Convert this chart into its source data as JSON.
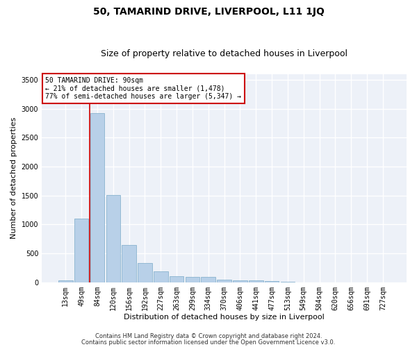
{
  "title": "50, TAMARIND DRIVE, LIVERPOOL, L11 1JQ",
  "subtitle": "Size of property relative to detached houses in Liverpool",
  "xlabel": "Distribution of detached houses by size in Liverpool",
  "ylabel": "Number of detached properties",
  "categories": [
    "13sqm",
    "49sqm",
    "84sqm",
    "120sqm",
    "156sqm",
    "192sqm",
    "227sqm",
    "263sqm",
    "299sqm",
    "334sqm",
    "370sqm",
    "406sqm",
    "441sqm",
    "477sqm",
    "513sqm",
    "549sqm",
    "584sqm",
    "620sqm",
    "656sqm",
    "691sqm",
    "727sqm"
  ],
  "values": [
    30,
    1100,
    2920,
    1510,
    640,
    335,
    195,
    100,
    95,
    90,
    50,
    30,
    30,
    20,
    5,
    3,
    3,
    2,
    1,
    1,
    1
  ],
  "bar_color": "#b8d0e8",
  "bar_edge_color": "#7aaac8",
  "highlight_color": "#cc0000",
  "vline_bar_index": 2,
  "annotation_line1": "50 TAMARIND DRIVE: 90sqm",
  "annotation_line2": "← 21% of detached houses are smaller (1,478)",
  "annotation_line3": "77% of semi-detached houses are larger (5,347) →",
  "annotation_box_color": "white",
  "annotation_box_edge_color": "#cc0000",
  "ylim": [
    0,
    3600
  ],
  "yticks": [
    0,
    500,
    1000,
    1500,
    2000,
    2500,
    3000,
    3500
  ],
  "background_color": "#edf1f8",
  "grid_color": "white",
  "title_fontsize": 10,
  "subtitle_fontsize": 9,
  "axis_label_fontsize": 8,
  "tick_fontsize": 7,
  "footer_line1": "Contains HM Land Registry data © Crown copyright and database right 2024.",
  "footer_line2": "Contains public sector information licensed under the Open Government Licence v3.0."
}
